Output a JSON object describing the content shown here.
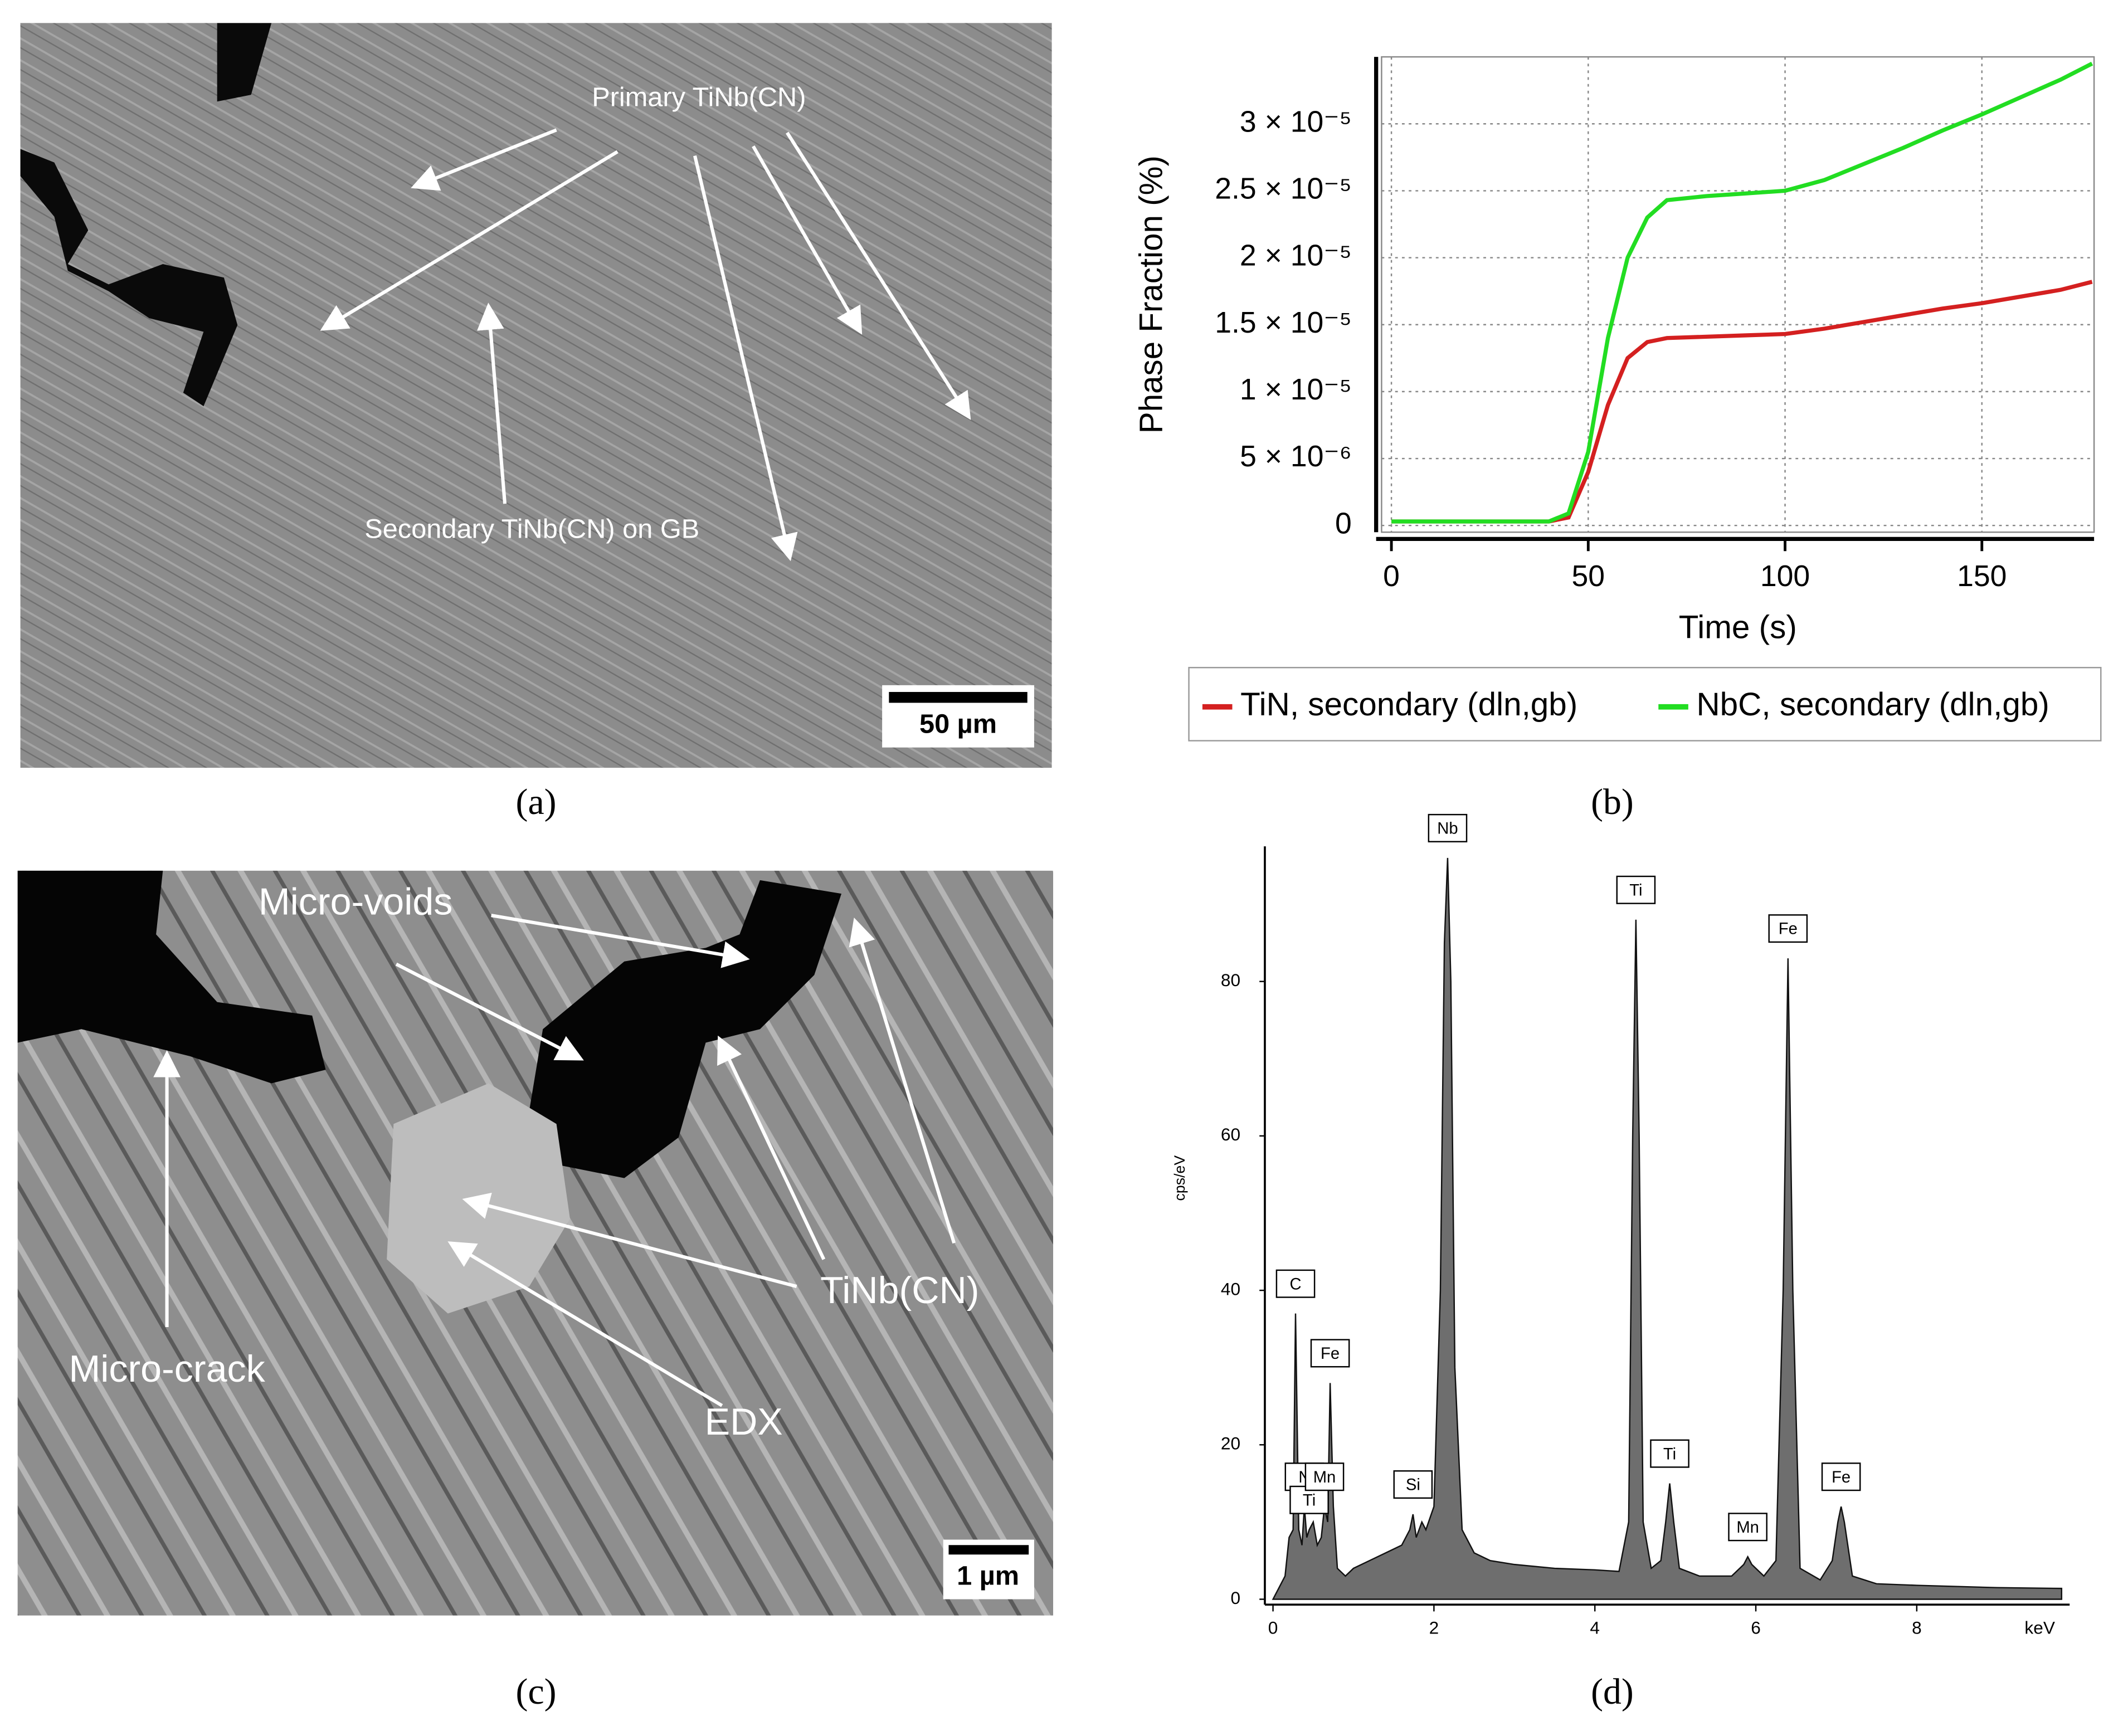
{
  "panels": {
    "a": {
      "annotations": [
        "Primary TiNb(CN)",
        "Secondary TiNb(CN) on GB"
      ],
      "scale_bar": "50 µm",
      "caption": "(a)"
    },
    "c": {
      "annotations": [
        "Micro-voids",
        "Micro-crack",
        "TiNb(CN)",
        "EDX"
      ],
      "scale_bar": "1 µm",
      "caption": "(c)"
    }
  },
  "chart_data": [
    {
      "type": "line",
      "caption": "(b)",
      "x_label": "Time (s)",
      "y_label": "Phase Fraction (%)",
      "x": [
        0,
        10,
        20,
        30,
        40,
        45,
        50,
        55,
        60,
        65,
        70,
        80,
        90,
        100,
        110,
        120,
        130,
        140,
        150,
        160,
        170,
        178
      ],
      "series": [
        {
          "name": "TiN, secondary (dln,gb)",
          "color": "#d42020",
          "values": [
            3e-07,
            3e-07,
            3e-07,
            3e-07,
            3e-07,
            6e-07,
            4e-06,
            9e-06,
            1.25e-05,
            1.37e-05,
            1.4e-05,
            1.41e-05,
            1.42e-05,
            1.43e-05,
            1.47e-05,
            1.52e-05,
            1.57e-05,
            1.62e-05,
            1.66e-05,
            1.71e-05,
            1.76e-05,
            1.82e-05
          ]
        },
        {
          "name": "NbC, secondary (dln,gb)",
          "color": "#22dd22",
          "values": [
            3e-07,
            3e-07,
            3e-07,
            3e-07,
            3e-07,
            9e-07,
            5.5e-06,
            1.4e-05,
            2e-05,
            2.3e-05,
            2.43e-05,
            2.46e-05,
            2.48e-05,
            2.5e-05,
            2.58e-05,
            2.7e-05,
            2.82e-05,
            2.95e-05,
            3.07e-05,
            3.2e-05,
            3.33e-05,
            3.45e-05
          ]
        }
      ],
      "xlim": [
        -2.5,
        178.5
      ],
      "xticks": [
        0,
        50,
        100,
        150
      ],
      "ylim": [
        -5e-07,
        3.5e-05
      ],
      "yticks": [
        0,
        {
          "value": 5e-06,
          "label": "5 × 10⁻⁶"
        },
        {
          "value": 1e-05,
          "label": "1 × 10⁻⁵"
        },
        {
          "value": 1.5e-05,
          "label": "1.5 × 10⁻⁵"
        },
        {
          "value": 2e-05,
          "label": "2 × 10⁻⁵"
        },
        {
          "value": 2.5e-05,
          "label": "2.5 × 10⁻⁵"
        },
        {
          "value": 3e-05,
          "label": "3 × 10⁻⁵"
        }
      ],
      "grid": true,
      "legend": "bottom"
    },
    {
      "type": "area",
      "caption": "(d)",
      "x_label": "keV",
      "y_label": "cps/eV",
      "color": "#6e6e6e",
      "x": [
        0,
        0.05,
        0.1,
        0.15,
        0.2,
        0.25,
        0.28,
        0.32,
        0.36,
        0.39,
        0.42,
        0.45,
        0.5,
        0.55,
        0.6,
        0.64,
        0.68,
        0.71,
        0.75,
        0.8,
        0.9,
        1.0,
        1.2,
        1.4,
        1.6,
        1.7,
        1.74,
        1.78,
        1.85,
        1.9,
        2.0,
        2.08,
        2.13,
        2.17,
        2.21,
        2.26,
        2.35,
        2.5,
        2.7,
        3.0,
        3.5,
        4.0,
        4.3,
        4.42,
        4.47,
        4.51,
        4.55,
        4.6,
        4.7,
        4.82,
        4.88,
        4.93,
        4.98,
        5.05,
        5.3,
        5.7,
        5.85,
        5.9,
        5.95,
        6.1,
        6.25,
        6.34,
        6.4,
        6.46,
        6.55,
        6.8,
        6.95,
        7.02,
        7.06,
        7.1,
        7.2,
        7.5,
        8.0,
        9.0,
        9.8
      ],
      "values": [
        0,
        1,
        2,
        3,
        8,
        9,
        37,
        9,
        7,
        12,
        8,
        9,
        10,
        7,
        8,
        12,
        10,
        28,
        12,
        4,
        3,
        4,
        5,
        6,
        7,
        9,
        11,
        8,
        10,
        9,
        12,
        40,
        85,
        96,
        80,
        30,
        9,
        6,
        5,
        4.5,
        4,
        3.8,
        3.6,
        10,
        60,
        88,
        60,
        10,
        4,
        5,
        10,
        15,
        10,
        4,
        3,
        3,
        4.5,
        5.5,
        4.5,
        3,
        5,
        40,
        83,
        40,
        4,
        2.5,
        5,
        10,
        12,
        10,
        3,
        2,
        1.8,
        1.5,
        1.4
      ],
      "peak_labels": [
        {
          "label": "C",
          "x": 0.28
        },
        {
          "label": "N",
          "x": 0.39
        },
        {
          "label": "Ti",
          "x": 0.45
        },
        {
          "label": "Mn",
          "x": 0.64
        },
        {
          "label": "Fe",
          "x": 0.71
        },
        {
          "label": "Si",
          "x": 1.74
        },
        {
          "label": "Nb",
          "x": 2.17
        },
        {
          "label": "Ti",
          "x": 4.51
        },
        {
          "label": "Ti",
          "x": 4.93
        },
        {
          "label": "Mn",
          "x": 5.9
        },
        {
          "label": "Fe",
          "x": 6.4
        },
        {
          "label": "Fe",
          "x": 7.06
        }
      ],
      "xlim": [
        0,
        9.9
      ],
      "xticks": [
        0,
        2,
        4,
        6,
        8
      ],
      "ylim": [
        0,
        97.5
      ],
      "yticks": [
        0,
        20,
        40,
        60,
        80
      ]
    }
  ]
}
